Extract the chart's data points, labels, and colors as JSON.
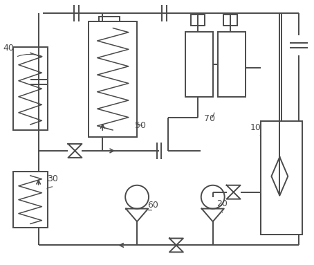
{
  "bg_color": "#ffffff",
  "line_color": "#4a4a4a",
  "line_width": 1.4,
  "label_fontsize": 9,
  "fig_width": 4.54,
  "fig_height": 3.83,
  "dpi": 100
}
